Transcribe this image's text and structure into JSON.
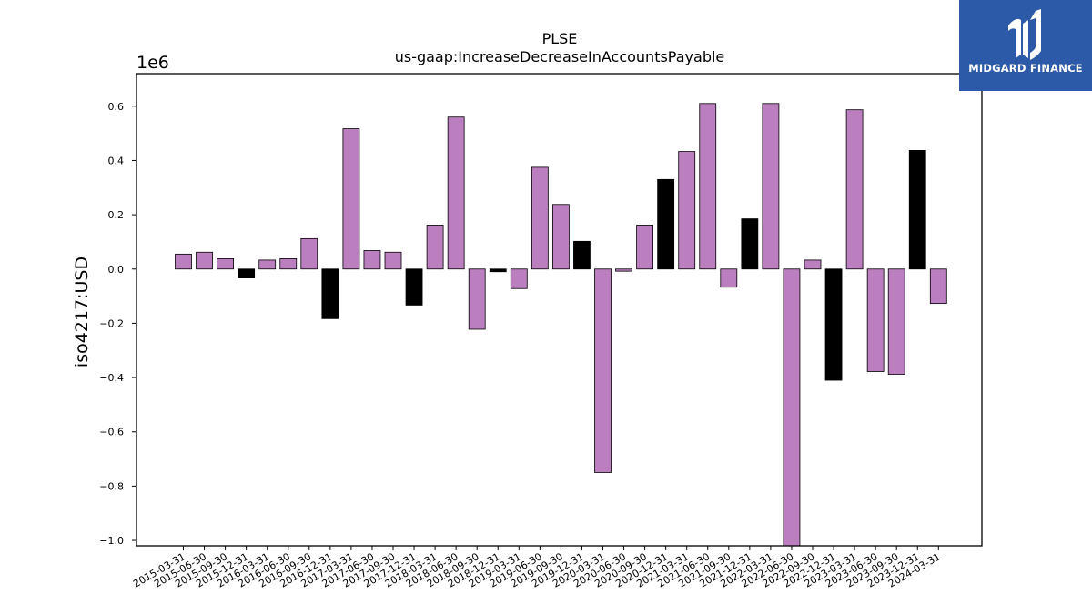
{
  "brand": {
    "name": "MIDGARD FINANCE",
    "bg_color": "#2d5aa8"
  },
  "chart_data": {
    "type": "bar",
    "title": "PLSE",
    "subtitle": "us-gaap:IncreaseDecreaseInAccountsPayable",
    "ylabel": "iso4217:USD",
    "xlabel": "",
    "y_multiplier_label": "1e6",
    "ylim": [
      -1.02,
      0.72
    ],
    "yticks": [
      -1.0,
      -0.8,
      -0.6,
      -0.4,
      -0.2,
      0.0,
      0.2,
      0.4,
      0.6
    ],
    "ytick_labels": [
      "−1.0",
      "−0.8",
      "−0.6",
      "−0.4",
      "−0.2",
      "0.0",
      "0.2",
      "0.4",
      "0.6"
    ],
    "grid": false,
    "colors": {
      "primary": "#bb7fbf",
      "highlight": "#000000",
      "edge": "#000000"
    },
    "categories": [
      "2015-03-31",
      "2015-06-30",
      "2015-09-30",
      "2015-12-31",
      "2016-03-31",
      "2016-06-30",
      "2016-09-30",
      "2016-12-31",
      "2017-03-31",
      "2017-06-30",
      "2017-09-30",
      "2017-12-31",
      "2018-03-31",
      "2018-06-30",
      "2018-09-30",
      "2018-12-31",
      "2019-03-31",
      "2019-06-30",
      "2019-09-30",
      "2019-12-31",
      "2020-03-31",
      "2020-06-30",
      "2020-09-30",
      "2020-12-31",
      "2021-03-31",
      "2021-06-30",
      "2021-09-30",
      "2021-12-31",
      "2022-03-31",
      "2022-06-30",
      "2022-09-30",
      "2022-12-31",
      "2023-03-31",
      "2023-06-30",
      "2023-09-30",
      "2023-12-31",
      "2024-03-31"
    ],
    "values": [
      0.055,
      0.062,
      0.038,
      -0.033,
      0.033,
      0.038,
      0.112,
      -0.183,
      0.517,
      0.068,
      0.062,
      -0.133,
      0.162,
      0.56,
      -0.222,
      -0.01,
      -0.072,
      0.375,
      0.238,
      0.102,
      -0.75,
      -0.008,
      0.162,
      0.33,
      0.433,
      0.61,
      -0.067,
      0.185,
      0.61,
      -1.02,
      0.033,
      -0.41,
      0.587,
      -0.378,
      -0.388,
      0.437,
      -0.127
    ],
    "highlight": [
      false,
      false,
      false,
      true,
      false,
      false,
      false,
      true,
      false,
      false,
      false,
      true,
      false,
      false,
      false,
      true,
      false,
      false,
      false,
      true,
      false,
      false,
      false,
      true,
      false,
      false,
      false,
      true,
      false,
      false,
      false,
      true,
      false,
      false,
      false,
      true,
      false
    ]
  }
}
